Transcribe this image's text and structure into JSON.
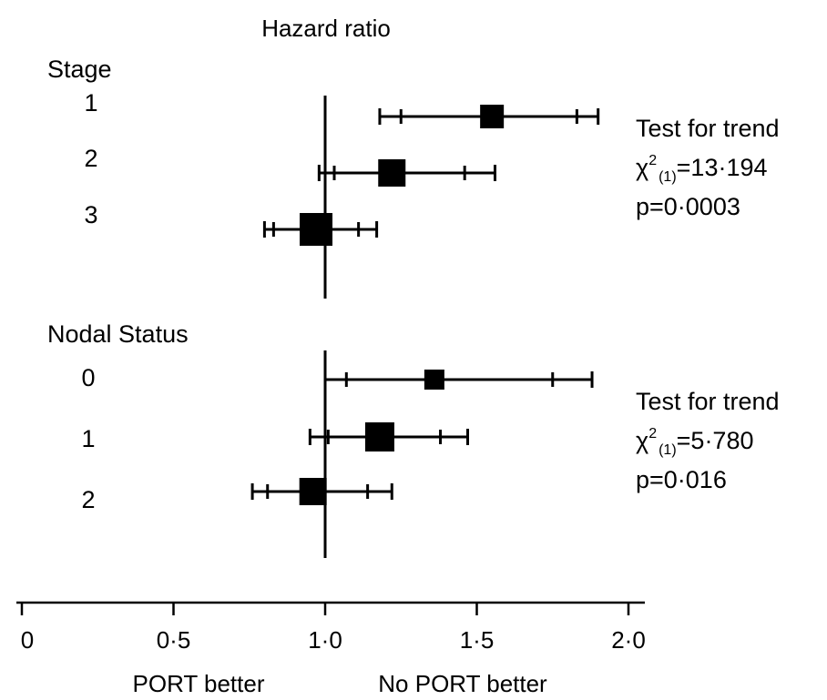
{
  "chart_data": {
    "type": "forest",
    "title": "Hazard ratio",
    "xlim": [
      0,
      2.0
    ],
    "reference_line": 1.0,
    "x_ticks": [
      {
        "value": 0,
        "label": "0"
      },
      {
        "value": 0.5,
        "label": "0·5"
      },
      {
        "value": 1.0,
        "label": "1·0"
      },
      {
        "value": 1.5,
        "label": "1·5"
      },
      {
        "value": 2.0,
        "label": "2·0"
      }
    ],
    "x_annotations": {
      "left": "PORT better",
      "right": "No PORT better"
    },
    "groups": [
      {
        "label": "Stage",
        "rows": [
          {
            "label": "1",
            "hr": 1.55,
            "ci95": [
              1.18,
              1.9
            ],
            "ci_inner": [
              1.25,
              1.83
            ]
          },
          {
            "label": "2",
            "hr": 1.22,
            "ci95": [
              0.98,
              1.56
            ],
            "ci_inner": [
              1.03,
              1.46
            ]
          },
          {
            "label": "3",
            "hr": 0.97,
            "ci95": [
              0.8,
              1.17
            ],
            "ci_inner": [
              0.83,
              1.11
            ]
          }
        ],
        "test": {
          "line1": "Test for trend",
          "chi": "χ",
          "sup": "2",
          "sub": "(1)",
          "stat": "=13·194",
          "p": "p=0·0003"
        }
      },
      {
        "label": "Nodal Status",
        "rows": [
          {
            "label": "0",
            "hr": 1.36,
            "ci95": [
              1.0,
              1.88
            ],
            "ci_inner": [
              1.07,
              1.75
            ]
          },
          {
            "label": "1",
            "hr": 1.18,
            "ci95": [
              0.95,
              1.47
            ],
            "ci_inner": [
              1.01,
              1.38
            ]
          },
          {
            "label": "2",
            "hr": 0.96,
            "ci95": [
              0.76,
              1.22
            ],
            "ci_inner": [
              0.81,
              1.14
            ]
          }
        ],
        "test": {
          "line1": "Test for trend",
          "chi": "χ",
          "sup": "2",
          "sub": "(1)",
          "stat": "=5·780",
          "p": "p=0·016"
        }
      }
    ]
  }
}
